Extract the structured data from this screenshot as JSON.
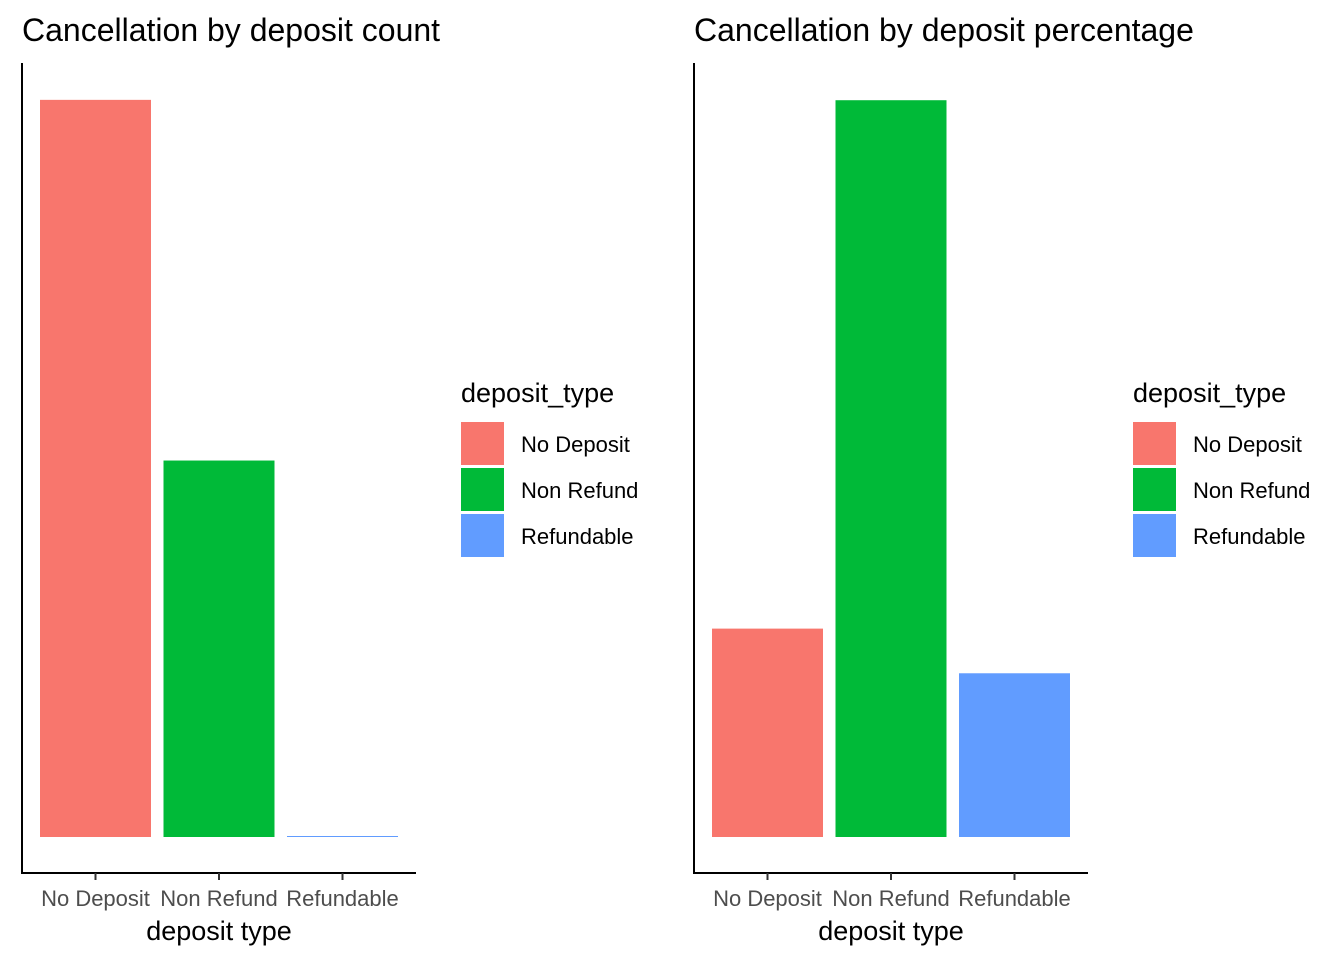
{
  "chart_data": [
    {
      "type": "bar",
      "title": "Cancellation by deposit count",
      "xlabel": "deposit type",
      "ylabel": "",
      "categories": [
        "No Deposit",
        "Non Refund",
        "Refundable"
      ],
      "values": [
        28000,
        14300,
        36
      ],
      "ylim": [
        0,
        29400
      ],
      "y_axis_ticks_shown": false,
      "grid": false,
      "colors": [
        "#F8766D",
        "#00BA38",
        "#619CFF"
      ],
      "legend": {
        "title": "deposit_type",
        "position": "right",
        "entries": [
          "No Deposit",
          "Non Refund",
          "Refundable"
        ]
      }
    },
    {
      "type": "bar",
      "title": "Cancellation by deposit percentage",
      "xlabel": "deposit type",
      "ylabel": "",
      "categories": [
        "No Deposit",
        "Non Refund",
        "Refundable"
      ],
      "values": [
        0.28,
        0.99,
        0.22
      ],
      "ylim": [
        0,
        1.04
      ],
      "y_axis_ticks_shown": false,
      "grid": false,
      "colors": [
        "#F8766D",
        "#00BA38",
        "#619CFF"
      ],
      "legend": {
        "title": "deposit_type",
        "position": "right",
        "entries": [
          "No Deposit",
          "Non Refund",
          "Refundable"
        ]
      }
    }
  ]
}
